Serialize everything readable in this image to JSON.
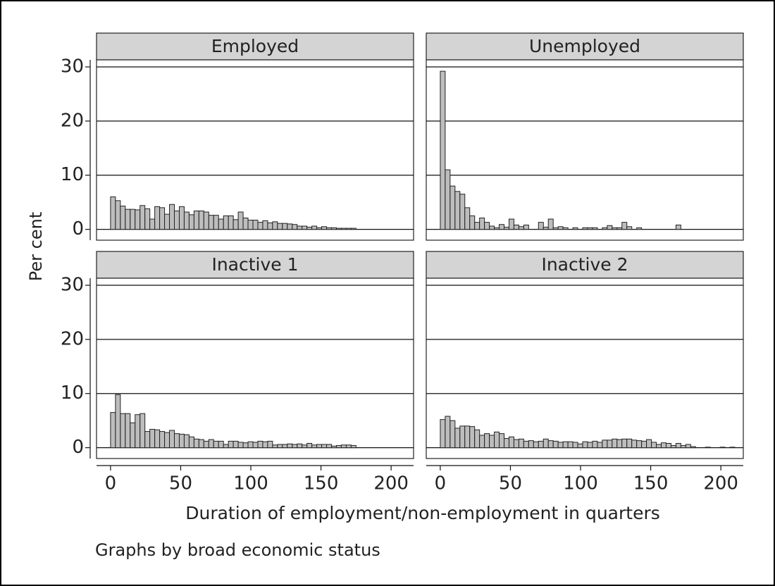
{
  "chart_data": [
    {
      "type": "histogram",
      "title": "Employed",
      "bins": [
        0,
        3.5,
        7,
        10.5,
        14,
        17.5,
        21,
        24.5,
        28,
        31.5,
        35,
        38.5,
        42,
        45.5,
        49,
        52.5,
        56,
        59.5,
        63,
        66.5,
        70,
        73.5,
        77,
        80.5,
        84,
        87.5,
        91,
        94.5,
        98,
        101.5,
        105,
        108.5,
        112,
        115.5,
        119,
        122.5,
        126,
        129.5,
        133,
        136.5,
        140,
        143.5,
        147,
        150.5,
        154,
        157.5,
        161,
        164.5,
        168,
        171.5,
        175
      ],
      "values": [
        6.0,
        5.3,
        4.3,
        3.7,
        3.7,
        3.6,
        4.4,
        3.8,
        1.9,
        4.2,
        4.0,
        2.8,
        4.6,
        3.4,
        4.2,
        3.2,
        2.7,
        3.4,
        3.4,
        3.2,
        2.6,
        2.6,
        1.9,
        2.5,
        2.5,
        1.8,
        3.2,
        2.1,
        1.7,
        1.7,
        1.3,
        1.6,
        1.2,
        1.4,
        1.1,
        1.1,
        1.0,
        0.9,
        0.6,
        0.6,
        0.4,
        0.6,
        0.3,
        0.5,
        0.3,
        0.3,
        0.2,
        0.2,
        0.2,
        0.2
      ],
      "color": "#bdbdbd",
      "xlim": [
        -10,
        216
      ],
      "ylim": [
        -2,
        31.3
      ],
      "yticks": [
        0,
        10,
        20,
        30
      ],
      "grid": true
    },
    {
      "type": "histogram",
      "title": "Unemployed",
      "bins": [
        0,
        3.5,
        7,
        10.5,
        14,
        17.5,
        21,
        24.5,
        28,
        31.5,
        35,
        38.5,
        42,
        45.5,
        49,
        52.5,
        56,
        59.5,
        63,
        66.5,
        70,
        73.5,
        77,
        80.5,
        84,
        87.5,
        91,
        94.5,
        98,
        101.5,
        105,
        108.5,
        112,
        115.5,
        119,
        122.5,
        126,
        129.5,
        133,
        136.5,
        140,
        143.5,
        147,
        150.5,
        154,
        157.5,
        161,
        164.5,
        168,
        171.5,
        175
      ],
      "values": [
        29.2,
        11,
        8,
        7,
        6.5,
        4,
        2.5,
        1.3,
        2.1,
        1.3,
        0.6,
        0.3,
        0.9,
        0.4,
        1.9,
        0.8,
        0.5,
        0.8,
        0,
        0,
        1.3,
        0.4,
        1.9,
        0.3,
        0.5,
        0.3,
        0,
        0.3,
        0,
        0.3,
        0.3,
        0.3,
        0,
        0.3,
        0.7,
        0.3,
        0.3,
        1.3,
        0.5,
        0,
        0.3,
        0,
        0,
        0,
        0,
        0,
        0,
        0,
        0.8,
        0
      ],
      "color": "#bdbdbd",
      "xlim": [
        -10,
        216
      ],
      "ylim": [
        -2,
        31.3
      ],
      "yticks": [
        0,
        10,
        20,
        30
      ],
      "grid": true
    },
    {
      "type": "histogram",
      "title": "Inactive 1",
      "bins": [
        0,
        3.5,
        7,
        10.5,
        14,
        17.5,
        21,
        24.5,
        28,
        31.5,
        35,
        38.5,
        42,
        45.5,
        49,
        52.5,
        56,
        59.5,
        63,
        66.5,
        70,
        73.5,
        77,
        80.5,
        84,
        87.5,
        91,
        94.5,
        98,
        101.5,
        105,
        108.5,
        112,
        115.5,
        119,
        122.5,
        126,
        129.5,
        133,
        136.5,
        140,
        143.5,
        147,
        150.5,
        154,
        157.5,
        161,
        164.5,
        168,
        171.5,
        175
      ],
      "values": [
        6.5,
        9.8,
        6.3,
        6.3,
        4.6,
        6.1,
        6.3,
        3.0,
        3.4,
        3.3,
        3.0,
        2.8,
        3.2,
        2.6,
        2.5,
        2.4,
        2.0,
        1.6,
        1.5,
        1.2,
        1.5,
        1.2,
        1.2,
        0.6,
        1.2,
        1.2,
        1.0,
        0.9,
        1.1,
        1.0,
        1.2,
        1.1,
        1.2,
        0.5,
        0.6,
        0.6,
        0.7,
        0.6,
        0.7,
        0.5,
        0.8,
        0.5,
        0.6,
        0.6,
        0.6,
        0.3,
        0.4,
        0.5,
        0.5,
        0.4
      ],
      "color": "#bdbdbd",
      "xlim": [
        -10,
        216
      ],
      "ylim": [
        -2,
        31.3
      ],
      "xticks": [
        0,
        50,
        100,
        150,
        200
      ],
      "yticks": [
        0,
        10,
        20,
        30
      ],
      "grid": true
    },
    {
      "type": "histogram",
      "title": "Inactive 2",
      "bins": [
        0,
        3.5,
        7,
        10.5,
        14,
        17.5,
        21,
        24.5,
        28,
        31.5,
        35,
        38.5,
        42,
        45.5,
        49,
        52.5,
        56,
        59.5,
        63,
        66.5,
        70,
        73.5,
        77,
        80.5,
        84,
        87.5,
        91,
        94.5,
        98,
        101.5,
        105,
        108.5,
        112,
        115.5,
        119,
        122.5,
        126,
        129.5,
        133,
        136.5,
        140,
        143.5,
        147,
        150.5,
        154,
        157.5,
        161,
        164.5,
        168,
        171.5,
        175,
        178.5,
        182,
        185.5,
        189,
        192.5,
        196,
        199.5,
        203,
        206.5,
        210
      ],
      "values": [
        5.2,
        5.8,
        5.0,
        3.6,
        4.0,
        4.0,
        3.9,
        3.3,
        2.3,
        2.6,
        2.3,
        2.9,
        2.6,
        1.7,
        2.0,
        1.5,
        1.6,
        1.2,
        1.3,
        1.1,
        1.2,
        1.6,
        1.3,
        1.2,
        1.0,
        1.1,
        1.1,
        1.0,
        0.7,
        1.1,
        1.0,
        1.2,
        1.0,
        1.4,
        1.4,
        1.6,
        1.5,
        1.6,
        1.6,
        1.4,
        1.3,
        1.2,
        1.5,
        1.0,
        0.6,
        0.9,
        0.8,
        0.4,
        0.8,
        0.4,
        0.6,
        0.2,
        0,
        0,
        0.1,
        0,
        0,
        0.1,
        0,
        0.1
      ],
      "color": "#bdbdbd",
      "xlim": [
        -10,
        216
      ],
      "ylim": [
        -2,
        31.3
      ],
      "xticks": [
        0,
        50,
        100,
        150,
        200
      ],
      "yticks": [
        0,
        10,
        20,
        30
      ],
      "grid": true
    }
  ],
  "ylabel": "Per cent",
  "xlabel": "Duration of employment/non-employment in quarters",
  "note": "Graphs by broad economic status"
}
